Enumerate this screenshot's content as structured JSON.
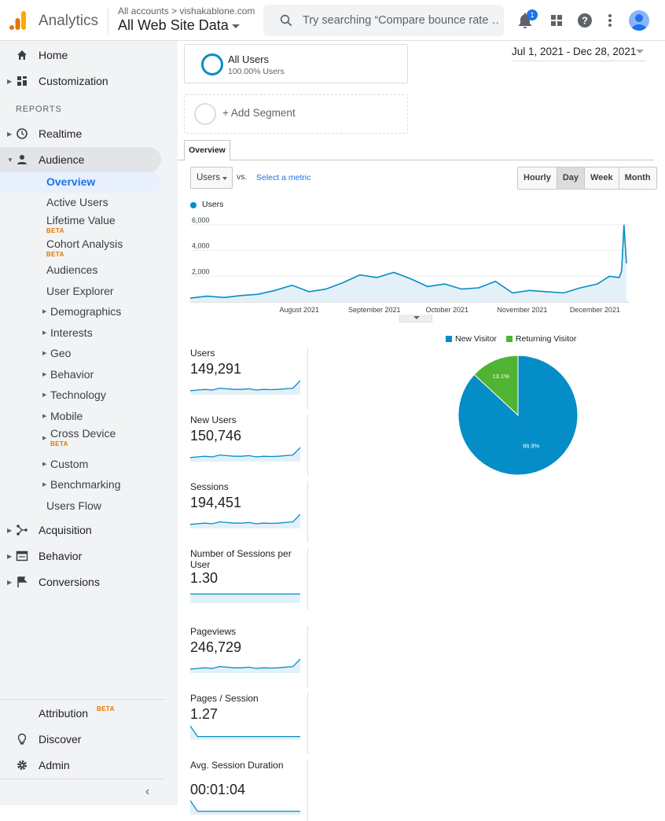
{
  "header": {
    "app_name": "Analytics",
    "account_crumb": "All accounts > vishakablone.com",
    "property": "All Web Site Data",
    "search_placeholder": "Try searching “Compare bounce rate …",
    "notification_count": "1"
  },
  "sidebar": {
    "top_items": [
      {
        "label": "Home",
        "icon": "home-icon"
      },
      {
        "label": "Customization",
        "icon": "dashboard-icon"
      }
    ],
    "section_title": "REPORTS",
    "reports": [
      {
        "label": "Realtime",
        "icon": "clock-icon"
      },
      {
        "label": "Audience",
        "icon": "person-icon"
      }
    ],
    "audience_sub": [
      {
        "label": "Overview",
        "selected": true
      },
      {
        "label": "Active Users"
      },
      {
        "label": "Lifetime Value",
        "badge": "BETA"
      },
      {
        "label": "Cohort Analysis",
        "badge": "BETA"
      },
      {
        "label": "Audiences"
      },
      {
        "label": "User Explorer"
      },
      {
        "label": "Demographics",
        "expandable": true
      },
      {
        "label": "Interests",
        "expandable": true
      },
      {
        "label": "Geo",
        "expandable": true
      },
      {
        "label": "Behavior",
        "expandable": true
      },
      {
        "label": "Technology",
        "expandable": true
      },
      {
        "label": "Mobile",
        "expandable": true
      },
      {
        "label": "Cross Device",
        "expandable": true,
        "badge": "BETA"
      },
      {
        "label": "Custom",
        "expandable": true
      },
      {
        "label": "Benchmarking",
        "expandable": true
      },
      {
        "label": "Users Flow"
      }
    ],
    "more_reports": [
      {
        "label": "Acquisition",
        "icon": "acquisition-icon"
      },
      {
        "label": "Behavior",
        "icon": "behavior-icon"
      },
      {
        "label": "Conversions",
        "icon": "flag-icon"
      }
    ],
    "footer": [
      {
        "label": "Attribution",
        "badge": "BETA"
      },
      {
        "label": "Discover",
        "icon": "lightbulb-icon"
      },
      {
        "label": "Admin",
        "icon": "gear-icon"
      }
    ]
  },
  "segments": {
    "active_name": "All Users",
    "active_pct": "100.00% Users",
    "add_label": "+ Add Segment"
  },
  "date_range": "Jul 1, 2021 - Dec 28, 2021",
  "tabs": [
    "Overview"
  ],
  "controls": {
    "metric": "Users",
    "vs": "vs.",
    "select_metric": "Select a metric",
    "granularity": [
      "Hourly",
      "Day",
      "Week",
      "Month"
    ],
    "granularity_selected": "Day"
  },
  "chart_data": [
    {
      "type": "area",
      "series": [
        {
          "name": "Users",
          "color": "#058dc7"
        }
      ],
      "y_ticks": [
        "2,000",
        "4,000",
        "6,000"
      ],
      "ylim": [
        0,
        6600
      ],
      "x_labels": [
        "August 2021",
        "September 2021",
        "October 2021",
        "November 2021",
        "December 2021"
      ],
      "x": [
        "2021-07-01",
        "2021-07-08",
        "2021-07-15",
        "2021-07-22",
        "2021-07-29",
        "2021-08-05",
        "2021-08-12",
        "2021-08-19",
        "2021-08-26",
        "2021-09-02",
        "2021-09-09",
        "2021-09-16",
        "2021-09-23",
        "2021-09-30",
        "2021-10-07",
        "2021-10-14",
        "2021-10-21",
        "2021-10-28",
        "2021-11-04",
        "2021-11-11",
        "2021-11-18",
        "2021-11-25",
        "2021-12-02",
        "2021-12-09",
        "2021-12-16",
        "2021-12-21",
        "2021-12-25",
        "2021-12-26",
        "2021-12-27",
        "2021-12-28"
      ],
      "values": [
        300,
        450,
        350,
        500,
        600,
        900,
        1300,
        800,
        1000,
        1500,
        2100,
        1900,
        2300,
        1800,
        1200,
        1400,
        1000,
        1100,
        1600,
        700,
        900,
        800,
        700,
        1100,
        1400,
        2000,
        1900,
        2400,
        6000,
        3000
      ]
    },
    {
      "type": "pie",
      "legend": [
        "New Visitor",
        "Returning Visitor"
      ],
      "categories": [
        "New Visitor",
        "Returning Visitor"
      ],
      "values": [
        86.9,
        13.1
      ],
      "labels": [
        "86.9%",
        "13.1%"
      ],
      "colors": [
        "#058dc7",
        "#50b432"
      ]
    }
  ],
  "kpis": [
    {
      "label": "Users",
      "value": "149,291"
    },
    {
      "label": "New Users",
      "value": "150,746"
    },
    {
      "label": "Sessions",
      "value": "194,451"
    },
    {
      "label": "Number of Sessions per User",
      "value": "1.30"
    },
    {
      "label": "Pageviews",
      "value": "246,729"
    },
    {
      "label": "Pages / Session",
      "value": "1.27"
    },
    {
      "label": "Avg. Session Duration",
      "value": "00:01:04"
    }
  ]
}
